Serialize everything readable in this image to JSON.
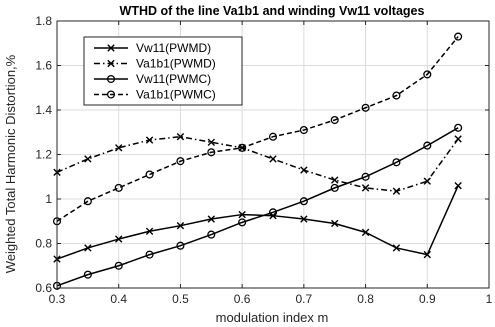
{
  "chart_data": {
    "type": "line",
    "title": "WTHD of the line Va1b1 and winding Vw11 voltages",
    "xlabel": "modulation index m",
    "ylabel": "Weighted Total Harmonic Distortion,%",
    "xlim": [
      0.3,
      1.0
    ],
    "ylim": [
      0.6,
      1.8
    ],
    "xticks": [
      "0.3",
      "0.4",
      "0.5",
      "0.6",
      "0.7",
      "0.8",
      "0.9",
      "1"
    ],
    "yticks": [
      "0.6",
      "0.8",
      "1",
      "1.2",
      "1.4",
      "1.6",
      "1.8"
    ],
    "grid": true,
    "legend_position": "top-left",
    "x": [
      0.3,
      0.35,
      0.4,
      0.45,
      0.5,
      0.55,
      0.6,
      0.65,
      0.7,
      0.75,
      0.8,
      0.85,
      0.9,
      0.95
    ],
    "series": [
      {
        "name": "Vw11(PWMD)",
        "marker": "x",
        "dash": "solid",
        "values": [
          0.73,
          0.78,
          0.82,
          0.855,
          0.88,
          0.91,
          0.93,
          0.925,
          0.91,
          0.89,
          0.85,
          0.78,
          0.75,
          1.06
        ]
      },
      {
        "name": "Va1b1(PWMD)",
        "marker": "x",
        "dash": "dashdot",
        "values": [
          1.12,
          1.18,
          1.23,
          1.265,
          1.28,
          1.255,
          1.23,
          1.18,
          1.13,
          1.085,
          1.05,
          1.035,
          1.08,
          1.27
        ]
      },
      {
        "name": "Vw11(PWMC)",
        "marker": "o",
        "dash": "solid",
        "values": [
          0.61,
          0.66,
          0.7,
          0.75,
          0.79,
          0.84,
          0.895,
          0.94,
          0.99,
          1.05,
          1.1,
          1.165,
          1.24,
          1.32
        ]
      },
      {
        "name": "Va1b1(PWMC)",
        "marker": "o",
        "dash": "dashed",
        "values": [
          0.9,
          0.99,
          1.05,
          1.11,
          1.17,
          1.21,
          1.23,
          1.28,
          1.31,
          1.355,
          1.41,
          1.465,
          1.56,
          1.73
        ]
      }
    ]
  }
}
